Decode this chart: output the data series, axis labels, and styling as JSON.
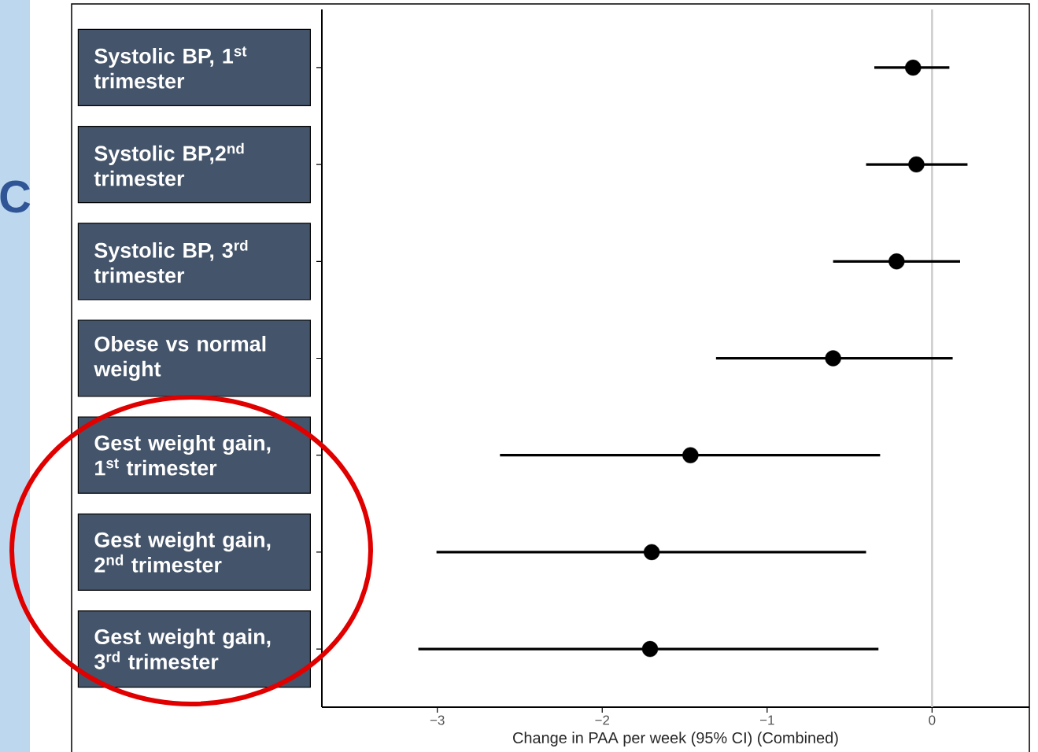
{
  "chart_data": {
    "type": "scatter",
    "orientation": "horizontal",
    "categories": [
      "Systolic BP, 1$^{st}$ trimester",
      "Systolic BP,2$^{nd}$ trimester",
      "Systolic BP, 3$^{rd}$ trimester",
      "Obese vs normal weight",
      "Gest weight gain, 1$^{st}$ trimester",
      "Gest weight gain, 2$^{nd}$ trimester",
      "Gest weight gain, 3$^{rd}$ trimester"
    ],
    "values": [
      -0.115,
      -0.095,
      -0.215,
      -0.6,
      -1.465,
      -1.7,
      -1.71
    ],
    "errors": [
      [
        -0.35,
        0.105
      ],
      [
        -0.4,
        0.215
      ],
      [
        -0.6,
        0.17
      ],
      [
        -1.31,
        0.125
      ],
      [
        -2.62,
        -0.315
      ],
      [
        -3.005,
        -0.4
      ],
      [
        -3.115,
        -0.325
      ]
    ],
    "color": "#000000",
    "marker": "circle",
    "xlim": [
      -3.7,
      0.59
    ],
    "xticks": [
      {
        "value": -3,
        "label": "−3"
      },
      {
        "value": -2,
        "label": "−2"
      },
      {
        "value": -1,
        "label": "−1"
      },
      0
    ],
    "xlabel": "Change in PAA per week (95% CI) (Combined)",
    "ref_lines": [
      {
        "axis": "x",
        "value": 0,
        "color": "#cccccc"
      }
    ],
    "annotations": [
      "C"
    ]
  }
}
